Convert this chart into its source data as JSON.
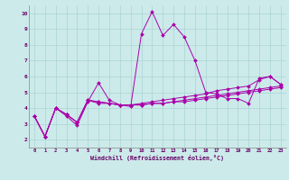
{
  "xlabel": "Windchill (Refroidissement éolien,°C)",
  "background_color": "#cceaea",
  "grid_color": "#aad4d4",
  "line_color": "#aa00aa",
  "xlim": [
    -0.5,
    23.5
  ],
  "ylim": [
    1.5,
    10.5
  ],
  "xticks": [
    0,
    1,
    2,
    3,
    4,
    5,
    6,
    7,
    8,
    9,
    10,
    11,
    12,
    13,
    14,
    15,
    16,
    17,
    18,
    19,
    20,
    21,
    22,
    23
  ],
  "yticks": [
    2,
    3,
    4,
    5,
    6,
    7,
    8,
    9,
    10
  ],
  "series": [
    [
      3.5,
      2.2,
      4.0,
      3.5,
      2.9,
      4.4,
      5.6,
      4.5,
      4.2,
      4.1,
      8.7,
      10.1,
      8.6,
      9.3,
      8.5,
      7.0,
      5.0,
      4.9,
      4.6,
      4.6,
      4.3,
      5.9,
      6.0,
      5.5
    ],
    [
      3.5,
      2.2,
      4.0,
      3.6,
      3.1,
      4.5,
      4.3,
      4.3,
      4.2,
      4.2,
      4.2,
      4.3,
      4.3,
      4.4,
      4.4,
      4.5,
      4.6,
      4.7,
      4.8,
      4.9,
      5.0,
      5.1,
      5.2,
      5.3
    ],
    [
      3.5,
      2.2,
      4.0,
      3.6,
      3.1,
      4.5,
      4.4,
      4.3,
      4.2,
      4.2,
      4.2,
      4.3,
      4.3,
      4.4,
      4.5,
      4.6,
      4.7,
      4.8,
      4.9,
      5.0,
      5.1,
      5.2,
      5.3,
      5.4
    ],
    [
      3.5,
      2.2,
      4.0,
      3.6,
      3.1,
      4.5,
      4.4,
      4.3,
      4.2,
      4.2,
      4.3,
      4.4,
      4.5,
      4.6,
      4.7,
      4.8,
      4.9,
      5.1,
      5.2,
      5.3,
      5.4,
      5.8,
      6.0,
      5.5
    ]
  ]
}
